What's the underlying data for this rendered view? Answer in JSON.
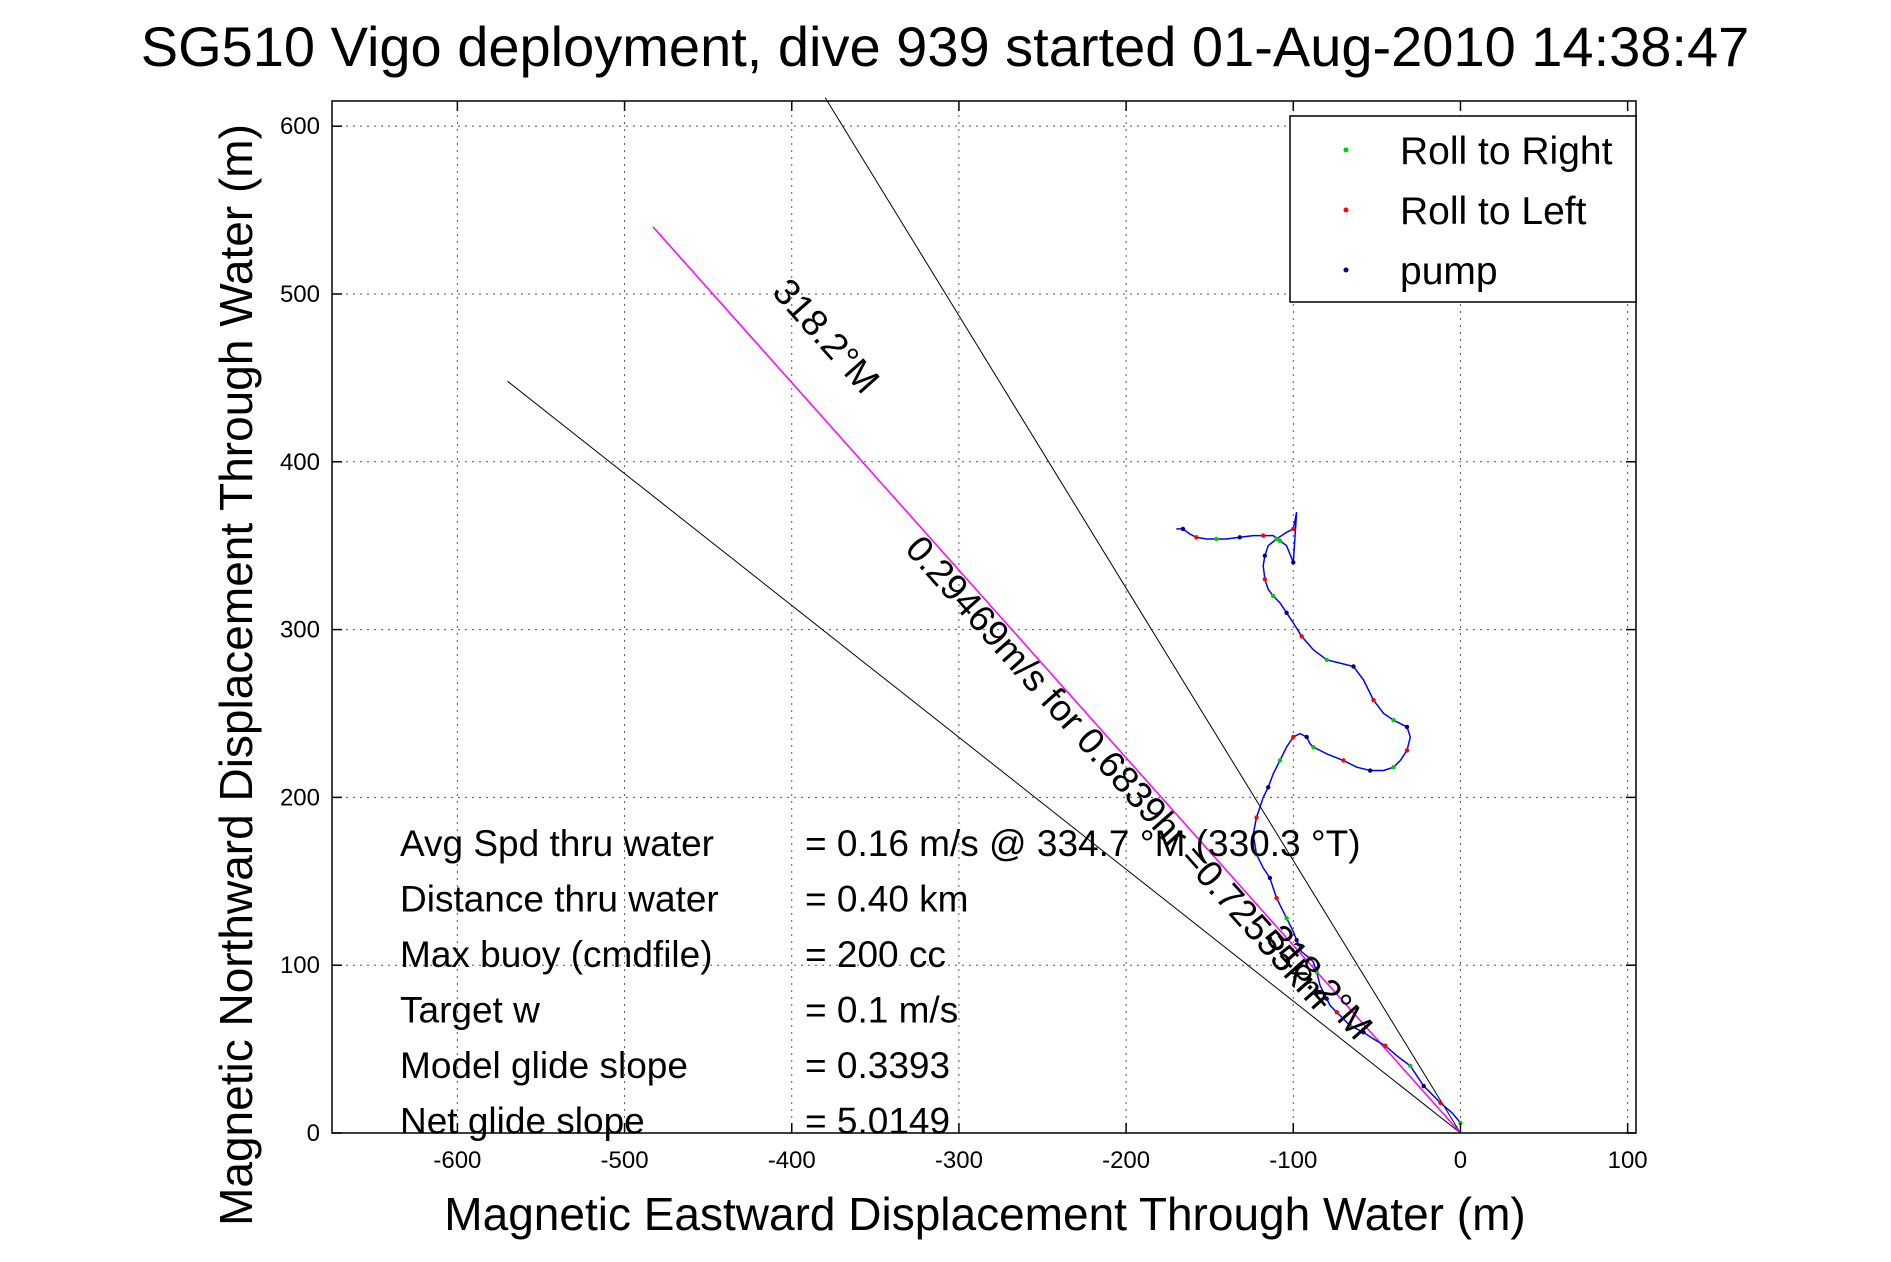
{
  "chart_data": {
    "type": "line",
    "title": "SG510 Vigo deployment, dive 939 started 01-Aug-2010 14:38:47",
    "xlabel": "Magnetic Eastward Displacement Through Water (m)",
    "ylabel": "Magnetic Northward Displacement Through Water (m)",
    "xlim": [
      -675,
      105
    ],
    "ylim": [
      0,
      615
    ],
    "xticks": [
      -600,
      -500,
      -400,
      -300,
      -200,
      -100,
      0,
      100
    ],
    "yticks": [
      0,
      100,
      200,
      300,
      400,
      500,
      600
    ],
    "grid": true,
    "legend_position": "top-right",
    "legend": [
      {
        "label": "Roll to Right",
        "color": "#00cc00"
      },
      {
        "label": "Roll to Left",
        "color": "#ff0000"
      },
      {
        "label": "pump",
        "color": "#000080"
      }
    ],
    "glider_track": {
      "color": "#0000ff",
      "x": [
        0,
        -5,
        -12,
        -18,
        -22,
        -26,
        -30,
        -38,
        -45,
        -52,
        -58,
        -62,
        -66,
        -70,
        -74,
        -78,
        -80,
        -84,
        -86,
        -88,
        -90,
        -95,
        -98,
        -100,
        -104,
        -108,
        -110,
        -112,
        -114,
        -118,
        -122,
        -124,
        -122,
        -118,
        -115,
        -112,
        -108,
        -104,
        -100,
        -96,
        -92,
        -90,
        -88,
        -80,
        -70,
        -62,
        -54,
        -46,
        -40,
        -36,
        -32,
        -30,
        -32,
        -36,
        -40,
        -46,
        -52,
        -58,
        -64,
        -72,
        -80,
        -88,
        -95,
        -100,
        -104,
        -108,
        -112,
        -115,
        -117,
        -118,
        -117,
        -115,
        -110,
        -104,
        -100,
        -98,
        -100,
        -104,
        -108,
        -112,
        -118,
        -124,
        -132,
        -140,
        -146,
        -152,
        -158,
        -162,
        -166,
        -170
      ],
      "y": [
        6,
        12,
        18,
        24,
        28,
        34,
        40,
        46,
        52,
        56,
        60,
        62,
        64,
        68,
        72,
        76,
        80,
        88,
        96,
        102,
        104,
        108,
        115,
        120,
        128,
        136,
        140,
        146,
        152,
        158,
        166,
        178,
        188,
        200,
        206,
        214,
        222,
        230,
        236,
        238,
        236,
        232,
        230,
        226,
        222,
        218,
        216,
        216,
        218,
        222,
        228,
        236,
        242,
        244,
        246,
        250,
        258,
        270,
        278,
        280,
        282,
        288,
        296,
        304,
        310,
        316,
        320,
        324,
        330,
        338,
        344,
        350,
        354,
        358,
        360,
        370,
        340,
        350,
        353,
        356,
        356,
        356,
        355,
        354,
        354,
        354,
        355,
        357,
        360,
        360
      ]
    },
    "heading_line": {
      "label": "318.2°M",
      "color": "#ff00ff",
      "x": [
        0,
        -483
      ],
      "y": [
        0,
        540
      ]
    },
    "bound_lines": [
      {
        "x": [
          0,
          -570
        ],
        "y": [
          0,
          448
        ]
      },
      {
        "x": [
          0,
          -380
        ],
        "y": [
          0,
          617
        ]
      }
    ],
    "line_labels": [
      {
        "text": "318.2°M",
        "x": -385,
        "y": 470
      },
      {
        "text": "0.29469m/s for 0.6839hr =0.72555km",
        "x": -210,
        "y": 210
      },
      {
        "text": "318.2°M",
        "x": -90,
        "y": 85
      }
    ],
    "annotations": [
      {
        "label": "Avg Spd thru water",
        "value": "=  0.16 m/s @ 334.7 °M (330.3 °T)"
      },
      {
        "label": "Distance thru water",
        "value": "=  0.40 km"
      },
      {
        "label": "Max buoy (cmdfile)",
        "value": "= 200 cc"
      },
      {
        "label": "Target w",
        "value": "= 0.1 m/s"
      },
      {
        "label": "Model glide slope",
        "value": "= 0.3393"
      },
      {
        "label": "Net glide slope",
        "value": "= 5.0149"
      }
    ]
  }
}
